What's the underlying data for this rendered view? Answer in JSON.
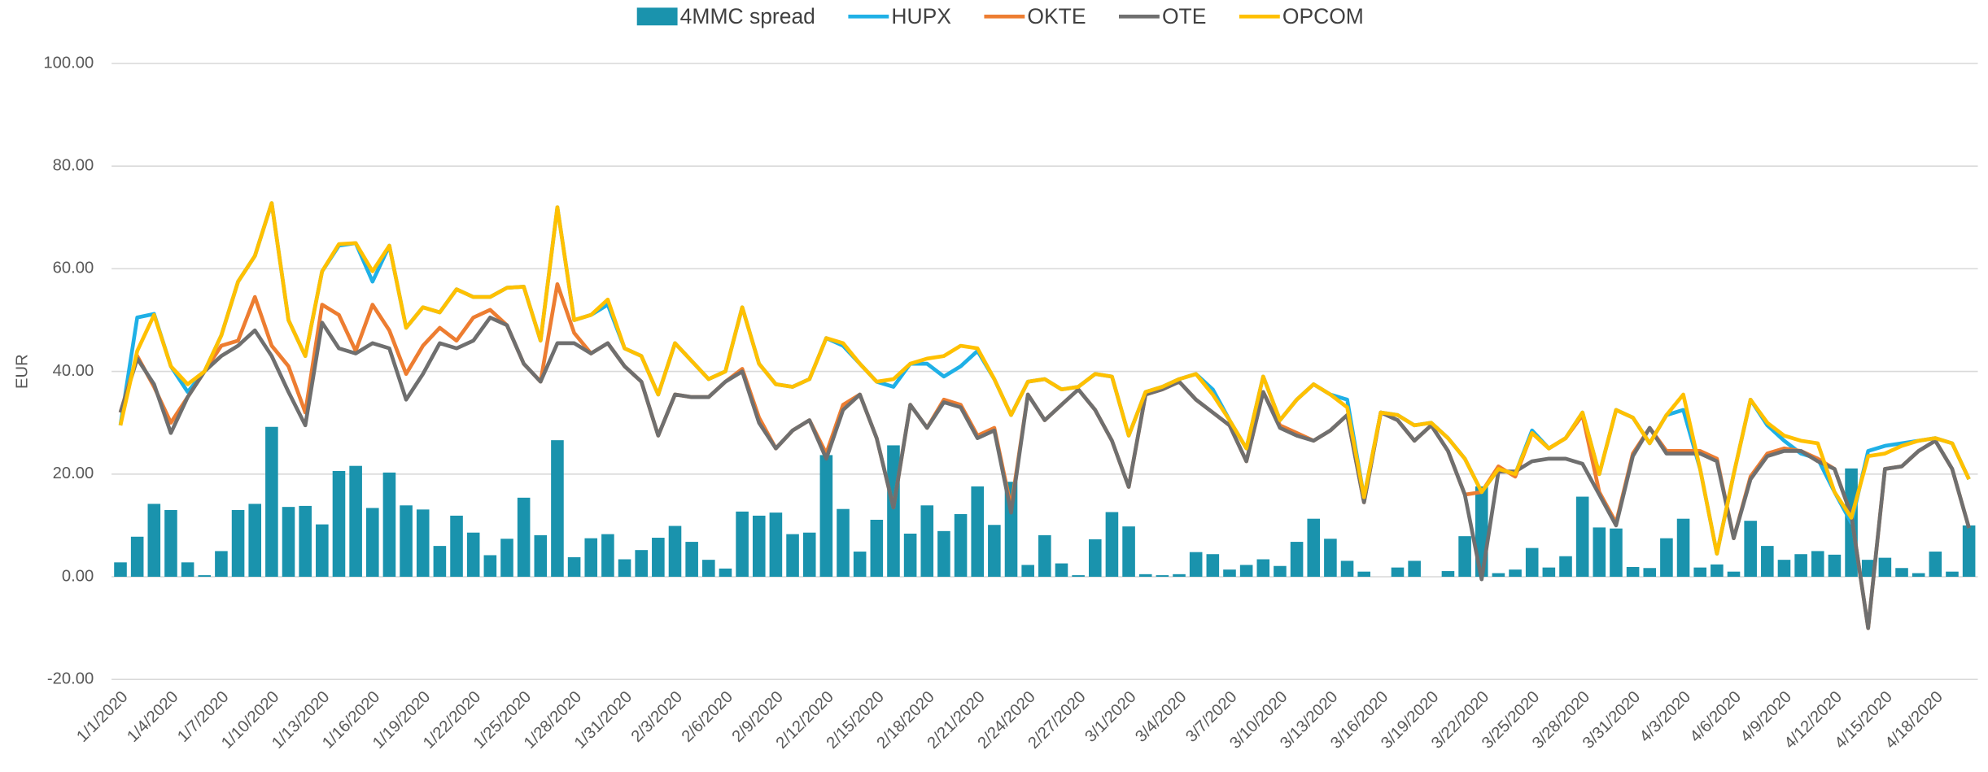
{
  "chart_data": {
    "type": "combo",
    "y_label": "EUR",
    "ylim": [
      -20,
      100
    ],
    "yticks": [
      {
        "value": -20,
        "label": "-20.00"
      },
      {
        "value": 0,
        "label": "0.00"
      },
      {
        "value": 20,
        "label": "20.00"
      },
      {
        "value": 40,
        "label": "40.00"
      },
      {
        "value": 60,
        "label": "60.00"
      },
      {
        "value": 80,
        "label": "80.00"
      },
      {
        "value": 100,
        "label": "100.00"
      }
    ],
    "grid": true,
    "legend": "top",
    "categories": [
      "1/1/2020",
      null,
      null,
      "1/4/2020",
      null,
      null,
      "1/7/2020",
      null,
      null,
      "1/10/2020",
      null,
      null,
      "1/13/2020",
      null,
      null,
      "1/16/2020",
      null,
      null,
      "1/19/2020",
      null,
      null,
      "1/22/2020",
      null,
      null,
      "1/25/2020",
      null,
      null,
      "1/28/2020",
      null,
      null,
      "1/31/2020",
      null,
      null,
      "2/3/2020",
      null,
      null,
      "2/6/2020",
      null,
      null,
      "2/9/2020",
      null,
      null,
      "2/12/2020",
      null,
      null,
      "2/15/2020",
      null,
      null,
      "2/18/2020",
      null,
      null,
      "2/21/2020",
      null,
      null,
      "2/24/2020",
      null,
      null,
      "2/27/2020",
      null,
      null,
      "3/1/2020",
      null,
      null,
      "3/4/2020",
      null,
      null,
      "3/7/2020",
      null,
      null,
      "3/10/2020",
      null,
      null,
      "3/13/2020",
      null,
      null,
      "3/16/2020",
      null,
      null,
      "3/19/2020",
      null,
      null,
      "3/22/2020",
      null,
      null,
      "3/25/2020",
      null,
      null,
      "3/28/2020",
      null,
      null,
      "3/31/2020",
      null,
      null,
      "4/3/2020",
      null,
      null,
      "4/6/2020",
      null,
      null,
      "4/9/2020",
      null,
      null,
      "4/12/2020",
      null,
      null,
      "4/15/2020",
      null,
      null,
      "4/18/2020",
      null,
      null
    ],
    "series": [
      {
        "name": "4MMC spread",
        "type": "bar",
        "color": "#1a93ad",
        "values": [
          2.8,
          7.8,
          14.2,
          13,
          2.8,
          0.3,
          5,
          13,
          14.2,
          29.2,
          13.6,
          13.8,
          10.2,
          20.6,
          21.6,
          13.4,
          20.3,
          13.9,
          13.1,
          6,
          11.9,
          8.6,
          4.2,
          7.4,
          15.4,
          8.1,
          26.6,
          3.8,
          7.5,
          8.3,
          3.4,
          5.2,
          7.6,
          9.9,
          6.8,
          3.3,
          1.6,
          12.7,
          11.9,
          12.5,
          8.3,
          8.6,
          23.7,
          13.2,
          4.9,
          11.1,
          25.6,
          8.4,
          13.9,
          8.9,
          12.2,
          17.6,
          10.1,
          18.5,
          2.3,
          8.1,
          2.6,
          0.3,
          7.3,
          12.6,
          9.8,
          0.5,
          0.3,
          0.5,
          4.8,
          4.4,
          1.4,
          2.3,
          3.4,
          2.1,
          6.8,
          11.3,
          7.4,
          3.1,
          1,
          0,
          1.8,
          3.1,
          0,
          1.1,
          7.9,
          17.6,
          0.7,
          1.4,
          5.6,
          1.8,
          4,
          15.6,
          9.6,
          9.4,
          1.9,
          1.7,
          7.5,
          11.3,
          1.8,
          2.4,
          1,
          10.9,
          6,
          3.3,
          4.4,
          5,
          4.3,
          21.1,
          3.3,
          3.7,
          1.7,
          0.7,
          4.9,
          1,
          10
        ]
      },
      {
        "name": "HUPX",
        "type": "line",
        "color": "#1fb0e6",
        "values": [
          29.5,
          50.5,
          51.2,
          41,
          36,
          40,
          47,
          57.5,
          62.5,
          72.8,
          50,
          43,
          59.5,
          64.5,
          65,
          57.5,
          64.5,
          48.5,
          52.5,
          51.5,
          56,
          54.5,
          54.5,
          56.3,
          56.5,
          46,
          72,
          50,
          51,
          53,
          44.5,
          43,
          35.5,
          45.5,
          42,
          38.5,
          40,
          52.5,
          41.5,
          37.5,
          37,
          38.5,
          46.5,
          45,
          41.5,
          38,
          37,
          41.5,
          41.5,
          39,
          41,
          44,
          38.5,
          31.5,
          38,
          38.5,
          36.5,
          37,
          39.5,
          39,
          27.5,
          36,
          37,
          38.5,
          39.5,
          36.5,
          30.5,
          25,
          39,
          30.5,
          34.5,
          37.5,
          35.5,
          34.5,
          15.5,
          32,
          31.5,
          29.5,
          30,
          27,
          23,
          16.5,
          21,
          20,
          28.5,
          25,
          27,
          32,
          20,
          32.5,
          31,
          26,
          31.5,
          32.5,
          21,
          4.5,
          20,
          34.5,
          29.5,
          26.5,
          24,
          23,
          16.5,
          10.5,
          24.5,
          25.5,
          26,
          26.5,
          27,
          26,
          19
        ]
      },
      {
        "name": "OKTE",
        "type": "line",
        "color": "#ed7d31",
        "values": [
          32,
          43,
          37,
          30,
          35,
          40,
          45,
          46,
          54.5,
          45,
          41,
          32,
          53,
          51,
          44,
          53,
          48,
          39.5,
          45,
          48.5,
          46,
          50.5,
          52,
          49,
          41.5,
          38,
          57,
          47.5,
          43.5,
          45.5,
          41,
          38,
          27.5,
          35.5,
          35,
          35,
          38,
          40.5,
          31,
          25,
          28.5,
          30.5,
          24,
          33.5,
          35.5,
          27,
          13.5,
          33.5,
          29,
          34.5,
          33.5,
          27.5,
          29,
          13.5,
          35.5,
          30.5,
          33.5,
          36.5,
          32.5,
          26.5,
          17.5,
          35.5,
          36.5,
          38,
          34.5,
          32,
          29.5,
          22.5,
          36,
          29.5,
          28,
          26.5,
          28.5,
          31.5,
          14.5,
          32,
          30.5,
          26.5,
          29.5,
          24.5,
          16,
          16.5,
          21.5,
          19.5,
          28,
          25,
          27,
          31.5,
          16.5,
          10.5,
          24,
          29,
          24.5,
          24.5,
          24.5,
          23,
          7.5,
          19.5,
          24,
          25,
          24.5,
          23,
          21,
          12,
          -10,
          21,
          21.5,
          24.5,
          26.5,
          21,
          9.5
        ]
      },
      {
        "name": "OTE",
        "type": "line",
        "color": "#6f6f6f",
        "values": [
          32,
          42.5,
          37.5,
          28,
          35,
          40,
          43,
          45,
          48,
          43,
          36,
          29.5,
          49.5,
          44.5,
          43.5,
          45.5,
          44.5,
          34.5,
          39.5,
          45.5,
          44.5,
          46,
          50.5,
          49,
          41.5,
          38,
          45.5,
          45.5,
          43.5,
          45.5,
          41,
          38,
          27.5,
          35.5,
          35,
          35,
          38,
          40,
          30,
          25,
          28.5,
          30.5,
          23,
          32.5,
          35.5,
          27,
          13.5,
          33.5,
          29,
          34,
          33,
          27,
          28.5,
          12.5,
          35.5,
          30.5,
          33.5,
          36.5,
          32.5,
          26.5,
          17.5,
          35.5,
          36.5,
          38,
          34.5,
          32,
          29.5,
          22.5,
          36,
          29,
          27.5,
          26.5,
          28.5,
          31.5,
          14.5,
          32,
          30.5,
          26.5,
          29.5,
          24.5,
          16,
          -0.5,
          20.5,
          20.5,
          22.5,
          23,
          23,
          22,
          16,
          10,
          23.5,
          29,
          24,
          24,
          24,
          22.5,
          7.5,
          19,
          23.5,
          24.5,
          24.5,
          22.5,
          21,
          12,
          -10,
          21,
          21.5,
          24.5,
          26.5,
          21,
          9.5
        ]
      },
      {
        "name": "OPCOM",
        "type": "line",
        "color": "#ffc000",
        "values": [
          29.5,
          44,
          51,
          41,
          37.5,
          40,
          47,
          57.5,
          62.5,
          72.8,
          50,
          43,
          59.5,
          64.8,
          65,
          59.5,
          64.5,
          48.5,
          52.5,
          51.5,
          56,
          54.5,
          54.5,
          56.3,
          56.5,
          46,
          72,
          50,
          51,
          54,
          44.5,
          43,
          35.5,
          45.5,
          42,
          38.5,
          40,
          52.5,
          41.5,
          37.5,
          37,
          38.5,
          46.5,
          45.5,
          41.5,
          38,
          38.5,
          41.5,
          42.5,
          43,
          45,
          44.5,
          38.5,
          31.5,
          38,
          38.5,
          36.5,
          37,
          39.5,
          39,
          27.5,
          36,
          37,
          38.5,
          39.5,
          35.5,
          30.5,
          25,
          39,
          30.5,
          34.5,
          37.5,
          35.5,
          33,
          15.5,
          32,
          31.5,
          29.5,
          30,
          27,
          23,
          16.5,
          21,
          20,
          28,
          25,
          27,
          32,
          20,
          32.5,
          31,
          26,
          31.5,
          35.5,
          21,
          4.5,
          20,
          34.5,
          30,
          27.5,
          26.5,
          26,
          16.5,
          11.5,
          23.5,
          24,
          25.5,
          26.5,
          27,
          26,
          19
        ]
      }
    ]
  }
}
